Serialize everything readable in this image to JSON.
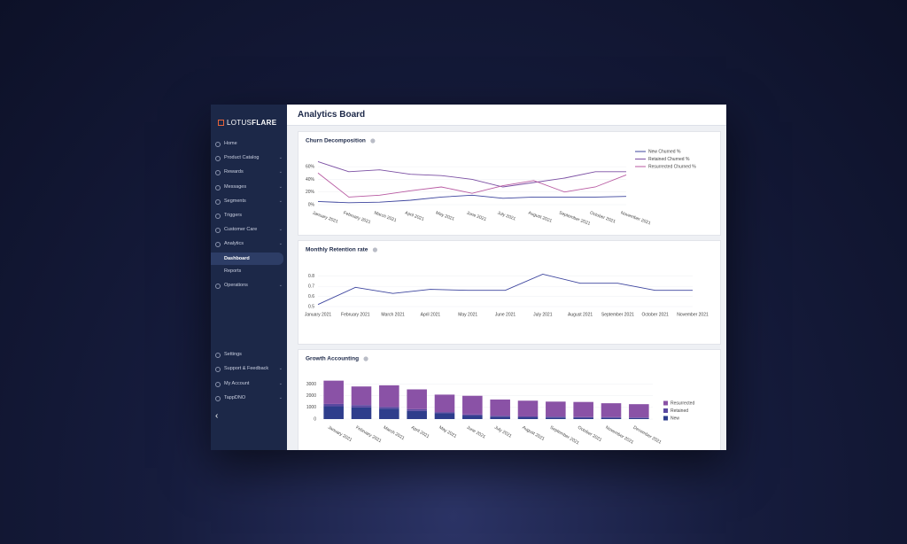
{
  "logo": {
    "first": "LOTUS",
    "second": "FLARE"
  },
  "sidebar": {
    "items": [
      "Home",
      "Product Catalog",
      "Rewards",
      "Messages",
      "Segments",
      "Triggers",
      "Customer Care",
      "Analytics",
      "Dashboard",
      "Reports",
      "Operations"
    ],
    "bottom_items": [
      "Settings",
      "Support & Feedback",
      "My Account",
      "TappDNO"
    ]
  },
  "header": {
    "title": "Analytics Board"
  },
  "chart_data": [
    {
      "type": "line",
      "title": "Churn Decomposition",
      "categories": [
        "January 2021",
        "February 2021",
        "March 2021",
        "April 2021",
        "May 2021",
        "June 2021",
        "July 2021",
        "August 2021",
        "September 2021",
        "October 2021",
        "November 2021"
      ],
      "series": [
        {
          "name": "New Churned %",
          "color": "#3d459e",
          "values": [
            5,
            3,
            4,
            7,
            12,
            15,
            10,
            12,
            12,
            12,
            13
          ]
        },
        {
          "name": "Retained Churned %",
          "color": "#7b4fa3",
          "values": [
            68,
            52,
            55,
            48,
            46,
            40,
            28,
            35,
            42,
            52,
            52
          ]
        },
        {
          "name": "Resurrected Churned %",
          "color": "#b85aa2",
          "values": [
            50,
            12,
            15,
            22,
            28,
            18,
            30,
            38,
            20,
            28,
            47
          ]
        }
      ],
      "ylim": [
        0,
        70
      ],
      "yticks": [
        {
          "value": 0,
          "label": "0%"
        },
        {
          "value": 20,
          "label": "20%"
        },
        {
          "value": 40,
          "label": "40%"
        },
        {
          "value": 60,
          "label": "60%"
        }
      ],
      "legend": "upper right"
    },
    {
      "type": "line",
      "title": "Monthly Retention rate",
      "categories": [
        "January 2021",
        "February 2021",
        "March 2021",
        "April 2021",
        "May 2021",
        "June 2021",
        "July 2021",
        "August 2021",
        "September 2021",
        "October 2021",
        "November 2021"
      ],
      "series": [
        {
          "name": "Retention",
          "color": "#3d459e",
          "values": [
            0.52,
            0.69,
            0.63,
            0.67,
            0.66,
            0.66,
            0.82,
            0.73,
            0.73,
            0.66,
            0.66
          ]
        }
      ],
      "ylim": [
        0.5,
        0.85
      ],
      "yticks": [
        0.5,
        0.6,
        0.7,
        0.8
      ]
    },
    {
      "type": "stacked_bar",
      "title": "Growth Accounting",
      "categories": [
        "January 2021",
        "February 2021",
        "March 2021",
        "April 2021",
        "May 2021",
        "June 2021",
        "July 2021",
        "August 2021",
        "September 2021",
        "October 2021",
        "November 2021",
        "December 2021"
      ],
      "series": [
        {
          "name": "New",
          "color": "#2e3d8c",
          "values": [
            1100,
            1000,
            900,
            700,
            500,
            300,
            200,
            150,
            130,
            110,
            100,
            80
          ]
        },
        {
          "name": "Retained",
          "color": "#5a48a0",
          "values": [
            200,
            200,
            150,
            150,
            100,
            100,
            80,
            80,
            70,
            60,
            60,
            50
          ]
        },
        {
          "name": "Resurrected",
          "color": "#8a52a6",
          "values": [
            2000,
            1600,
            1850,
            1700,
            1500,
            1600,
            1400,
            1350,
            1300,
            1300,
            1200,
            1150
          ]
        }
      ],
      "ylim": [
        0,
        3500
      ],
      "yticks": [
        0,
        1000,
        2000,
        3000
      ],
      "legend": "right"
    }
  ]
}
